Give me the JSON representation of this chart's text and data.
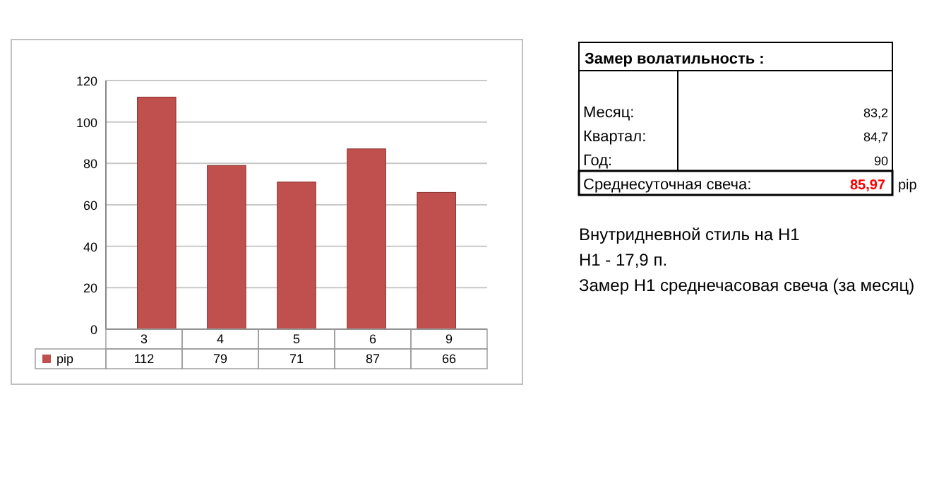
{
  "chart_data": [
    {
      "type": "bar",
      "categories": [
        "3",
        "4",
        "5",
        "6",
        "9"
      ],
      "series": [
        {
          "name": "pip",
          "color": "#c0504d",
          "values": [
            112,
            79,
            71,
            87,
            66
          ]
        }
      ],
      "ylim": [
        0,
        120
      ],
      "yticks": [
        0,
        20,
        40,
        60,
        80,
        100,
        120
      ],
      "grid": "y",
      "data_labels": true,
      "legend": "bottom"
    },
    {
      "type": "other",
      "title": "Замер  волатильность  :",
      "annotations": [
        "Месяц:",
        "83,2",
        "Квартал:",
        "84,7",
        "Год:",
        "90",
        "Среднесуточная свеча:",
        "85,97",
        "pip",
        "Внутридневной стиль на H1",
        "H1 - 17,9 п.",
        "Замер H1 среднечасовая свеча (за месяц)"
      ],
      "colors": [
        "#000000",
        "#000000",
        "#000000",
        "#000000",
        "#000000",
        "#000000",
        "#000000",
        "#ff0000",
        "#000000",
        "#000000",
        "#000000",
        "#000000"
      ]
    }
  ]
}
